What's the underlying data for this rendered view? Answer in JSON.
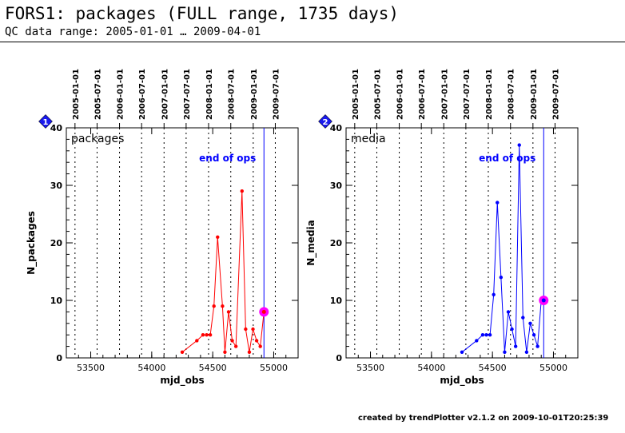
{
  "header": {
    "title": "FORS1: packages (FULL range, 1735 days)",
    "subtitle": "QC data range: 2005-01-01 … 2009-04-01"
  },
  "footer": "created by trendPlotter v2.1.2 on 2009-10-01T20:25:39",
  "chart_data": [
    {
      "type": "line",
      "panel_badge": "1",
      "title": "packages",
      "xlabel": "mjd_obs",
      "ylabel": "N_packages",
      "xlim": [
        53300,
        55200
      ],
      "ylim": [
        0,
        40
      ],
      "xticks": [
        53500,
        54000,
        54500,
        55000
      ],
      "yticks": [
        0,
        10,
        20,
        30,
        40
      ],
      "color": "#ff0000",
      "highlight_color": "#ff00ff",
      "x": [
        54250,
        54370,
        54420,
        54450,
        54480,
        54510,
        54540,
        54580,
        54600,
        54630,
        54660,
        54690,
        54740,
        54770,
        54800,
        54830,
        54860,
        54890,
        54920
      ],
      "y": [
        1,
        3,
        4,
        4,
        4,
        9,
        21,
        9,
        1,
        8,
        3,
        2,
        29,
        5,
        1,
        5,
        3,
        2,
        8
      ],
      "highlight_point": {
        "x": 54920,
        "y": 8
      },
      "end_of_ops": {
        "x": 54920,
        "label": "end of ops",
        "color": "#0000ff"
      },
      "top_axis_dates": [
        "2005-01-01",
        "2005-07-01",
        "2006-01-01",
        "2006-07-01",
        "2007-01-01",
        "2007-07-01",
        "2008-01-01",
        "2008-07-01",
        "2009-01-01",
        "2009-07-01"
      ],
      "top_axis_mjd": [
        53371,
        53552,
        53736,
        53917,
        54101,
        54282,
        54466,
        54648,
        54832,
        55013
      ],
      "grid": "vertical dotted at top-axis dates"
    },
    {
      "type": "line",
      "panel_badge": "2",
      "title": "media",
      "xlabel": "mjd_obs",
      "ylabel": "N_media",
      "xlim": [
        53300,
        55200
      ],
      "ylim": [
        0,
        40
      ],
      "xticks": [
        53500,
        54000,
        54500,
        55000
      ],
      "yticks": [
        0,
        10,
        20,
        30,
        40
      ],
      "color": "#0000ff",
      "highlight_color": "#ff00ff",
      "x": [
        54250,
        54370,
        54420,
        54450,
        54480,
        54510,
        54540,
        54570,
        54600,
        54630,
        54660,
        54690,
        54720,
        54750,
        54780,
        54810,
        54840,
        54870,
        54900,
        54920
      ],
      "y": [
        1,
        3,
        4,
        4,
        4,
        11,
        27,
        14,
        1,
        8,
        5,
        2,
        37,
        7,
        1,
        6,
        4,
        2,
        10,
        10
      ],
      "highlight_point": {
        "x": 54920,
        "y": 10
      },
      "end_of_ops": {
        "x": 54920,
        "label": "end of ops",
        "color": "#0000ff"
      },
      "top_axis_dates": [
        "2005-01-01",
        "2005-07-01",
        "2006-01-01",
        "2006-07-01",
        "2007-01-01",
        "2007-07-01",
        "2008-01-01",
        "2008-07-01",
        "2009-01-01",
        "2009-07-01"
      ],
      "top_axis_mjd": [
        53371,
        53552,
        53736,
        53917,
        54101,
        54282,
        54466,
        54648,
        54832,
        55013
      ],
      "grid": "vertical dotted at top-axis dates"
    }
  ]
}
